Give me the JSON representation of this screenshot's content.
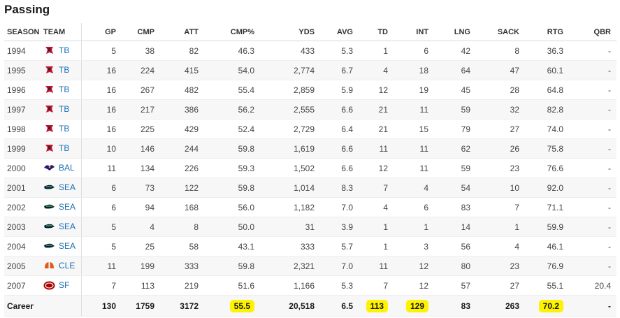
{
  "title": "Passing",
  "columns": [
    "SEASON",
    "TEAM",
    "GP",
    "CMP",
    "ATT",
    "CMP%",
    "YDS",
    "AVG",
    "TD",
    "INT",
    "LNG",
    "SACK",
    "RTG",
    "QBR"
  ],
  "teams": {
    "TB": {
      "icon": "buccaneers-logo-icon",
      "color": "#c8102e"
    },
    "BAL": {
      "icon": "ravens-logo-icon",
      "color": "#241773"
    },
    "SEA": {
      "icon": "seahawks-logo-icon",
      "color": "#002244"
    },
    "CLE": {
      "icon": "browns-logo-icon",
      "color": "#e05a1a"
    },
    "SF": {
      "icon": "49ers-logo-icon",
      "color": "#aa0000"
    }
  },
  "rows": [
    {
      "season": "1994",
      "team": "TB",
      "gp": "5",
      "cmp": "38",
      "att": "82",
      "cmp_pct": "46.3",
      "yds": "433",
      "avg": "5.3",
      "td": "1",
      "int": "6",
      "lng": "42",
      "sack": "8",
      "rtg": "36.3",
      "qbr": "-"
    },
    {
      "season": "1995",
      "team": "TB",
      "gp": "16",
      "cmp": "224",
      "att": "415",
      "cmp_pct": "54.0",
      "yds": "2,774",
      "avg": "6.7",
      "td": "4",
      "int": "18",
      "lng": "64",
      "sack": "47",
      "rtg": "60.1",
      "qbr": "-"
    },
    {
      "season": "1996",
      "team": "TB",
      "gp": "16",
      "cmp": "267",
      "att": "482",
      "cmp_pct": "55.4",
      "yds": "2,859",
      "avg": "5.9",
      "td": "12",
      "int": "19",
      "lng": "45",
      "sack": "28",
      "rtg": "64.8",
      "qbr": "-"
    },
    {
      "season": "1997",
      "team": "TB",
      "gp": "16",
      "cmp": "217",
      "att": "386",
      "cmp_pct": "56.2",
      "yds": "2,555",
      "avg": "6.6",
      "td": "21",
      "int": "11",
      "lng": "59",
      "sack": "32",
      "rtg": "82.8",
      "qbr": "-"
    },
    {
      "season": "1998",
      "team": "TB",
      "gp": "16",
      "cmp": "225",
      "att": "429",
      "cmp_pct": "52.4",
      "yds": "2,729",
      "avg": "6.4",
      "td": "21",
      "int": "15",
      "lng": "79",
      "sack": "27",
      "rtg": "74.0",
      "qbr": "-"
    },
    {
      "season": "1999",
      "team": "TB",
      "gp": "10",
      "cmp": "146",
      "att": "244",
      "cmp_pct": "59.8",
      "yds": "1,619",
      "avg": "6.6",
      "td": "11",
      "int": "11",
      "lng": "62",
      "sack": "26",
      "rtg": "75.8",
      "qbr": "-"
    },
    {
      "season": "2000",
      "team": "BAL",
      "gp": "11",
      "cmp": "134",
      "att": "226",
      "cmp_pct": "59.3",
      "yds": "1,502",
      "avg": "6.6",
      "td": "12",
      "int": "11",
      "lng": "59",
      "sack": "23",
      "rtg": "76.6",
      "qbr": "-"
    },
    {
      "season": "2001",
      "team": "SEA",
      "gp": "6",
      "cmp": "73",
      "att": "122",
      "cmp_pct": "59.8",
      "yds": "1,014",
      "avg": "8.3",
      "td": "7",
      "int": "4",
      "lng": "54",
      "sack": "10",
      "rtg": "92.0",
      "qbr": "-"
    },
    {
      "season": "2002",
      "team": "SEA",
      "gp": "6",
      "cmp": "94",
      "att": "168",
      "cmp_pct": "56.0",
      "yds": "1,182",
      "avg": "7.0",
      "td": "4",
      "int": "6",
      "lng": "83",
      "sack": "7",
      "rtg": "71.1",
      "qbr": "-"
    },
    {
      "season": "2003",
      "team": "SEA",
      "gp": "5",
      "cmp": "4",
      "att": "8",
      "cmp_pct": "50.0",
      "yds": "31",
      "avg": "3.9",
      "td": "1",
      "int": "1",
      "lng": "14",
      "sack": "1",
      "rtg": "59.9",
      "qbr": "-"
    },
    {
      "season": "2004",
      "team": "SEA",
      "gp": "5",
      "cmp": "25",
      "att": "58",
      "cmp_pct": "43.1",
      "yds": "333",
      "avg": "5.7",
      "td": "1",
      "int": "3",
      "lng": "56",
      "sack": "4",
      "rtg": "46.1",
      "qbr": "-"
    },
    {
      "season": "2005",
      "team": "CLE",
      "gp": "11",
      "cmp": "199",
      "att": "333",
      "cmp_pct": "59.8",
      "yds": "2,321",
      "avg": "7.0",
      "td": "11",
      "int": "12",
      "lng": "80",
      "sack": "23",
      "rtg": "76.9",
      "qbr": "-"
    },
    {
      "season": "2007",
      "team": "SF",
      "gp": "7",
      "cmp": "113",
      "att": "219",
      "cmp_pct": "51.6",
      "yds": "1,166",
      "avg": "5.3",
      "td": "7",
      "int": "12",
      "lng": "57",
      "sack": "27",
      "rtg": "55.1",
      "qbr": "20.4"
    }
  ],
  "career": {
    "label": "Career",
    "gp": "130",
    "cmp": "1759",
    "att": "3172",
    "cmp_pct": "55.5",
    "yds": "20,518",
    "avg": "6.5",
    "td": "113",
    "int": "129",
    "lng": "83",
    "sack": "263",
    "rtg": "70.2",
    "qbr": "-"
  },
  "highlight_color": "#fff200"
}
